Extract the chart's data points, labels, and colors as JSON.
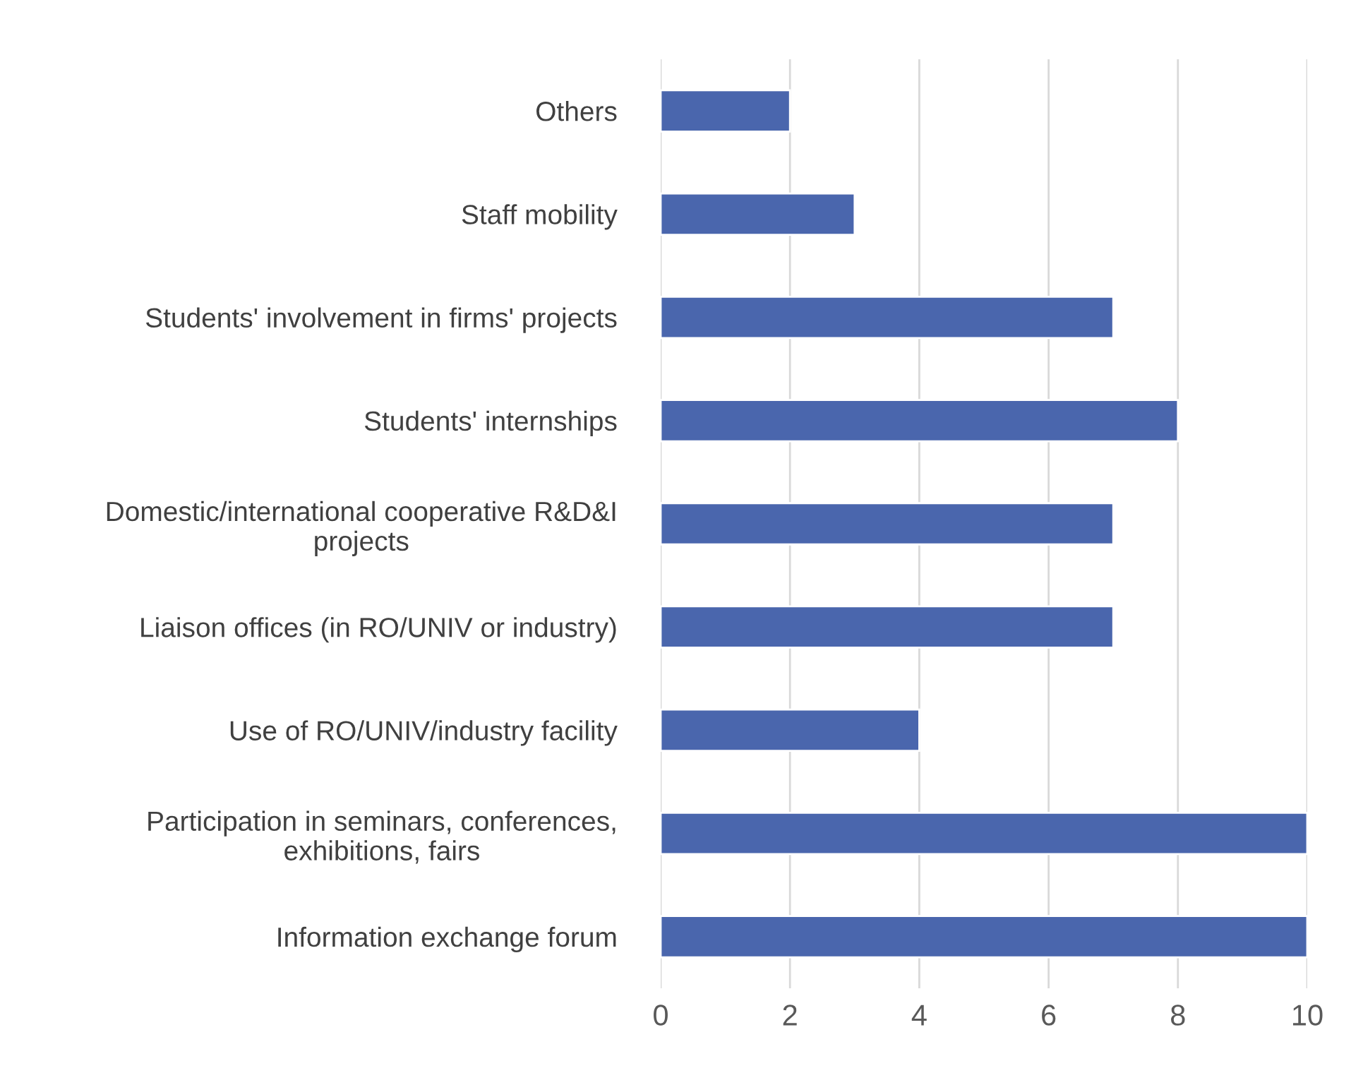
{
  "chart_data": {
    "type": "bar",
    "orientation": "horizontal",
    "categories": [
      "Others",
      "Staff mobility",
      "Students' involvement in firms' projects",
      "Students' internships",
      "Domestic/international cooperative R&D&I\nprojects",
      "Liaison offices (in RO/UNIV or industry)",
      "Use of RO/UNIV/industry facility",
      "Participation in seminars, conferences,\nexhibitions, fairs",
      "Information exchange forum"
    ],
    "values": [
      2,
      3,
      7,
      8,
      7,
      7,
      4,
      10,
      10
    ],
    "color": "#4a66ad",
    "xlim": [
      0,
      10
    ],
    "xticks": [
      0,
      2,
      4,
      6,
      8,
      10
    ],
    "grid": "x",
    "legend": false
  }
}
